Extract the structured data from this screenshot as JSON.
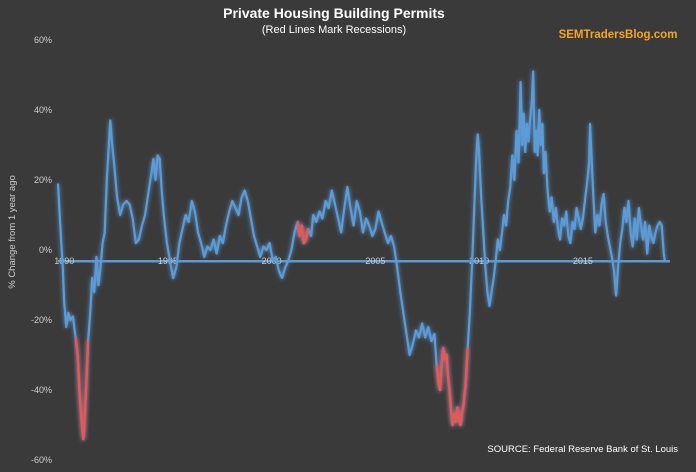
{
  "chart_data": {
    "type": "line",
    "title": "Private Housing Building Permits",
    "subtitle": "(Red Lines Mark Recessions)",
    "watermark": "SEMTradersBlog.com",
    "source": "SOURCE:  Federal Reserve Bank of St. Louis",
    "ylabel": "% Change from 1 year ago",
    "xlabel": "",
    "x_ticks": [
      "1990",
      "1995",
      "2000",
      "2005",
      "2010",
      "2015"
    ],
    "y_ticks": [
      "60%",
      "40%",
      "20%",
      "0%",
      "-20%",
      "-40%",
      "-60%"
    ],
    "xlim": [
      1989.7,
      2019.2
    ],
    "ylim": [
      -60,
      60
    ],
    "grid": false,
    "colors": {
      "series": "#5b9bd5",
      "recession": "#e05a5a",
      "background": "#3a3a3a",
      "zero_line": "#5b9bd5",
      "watermark": "#f5a623"
    },
    "series": [
      {
        "values": [
          [
            1989.7,
            19
          ],
          [
            1989.78,
            10
          ],
          [
            1989.85,
            3
          ],
          [
            1989.93,
            -5
          ],
          [
            1990.0,
            -15
          ],
          [
            1990.1,
            -22
          ],
          [
            1990.2,
            -18
          ],
          [
            1990.3,
            -20
          ],
          [
            1990.42,
            -19
          ],
          [
            1990.55,
            -25
          ],
          [
            1990.65,
            -30
          ],
          [
            1990.75,
            -42
          ],
          [
            1990.83,
            -48
          ],
          [
            1990.92,
            -54
          ],
          [
            1990.97,
            -50
          ],
          [
            1991.05,
            -40
          ],
          [
            1991.15,
            -26
          ],
          [
            1991.25,
            -18
          ],
          [
            1991.35,
            -8
          ],
          [
            1991.45,
            -12
          ],
          [
            1991.55,
            -2
          ],
          [
            1991.65,
            -10
          ],
          [
            1991.75,
            -5
          ],
          [
            1991.85,
            2
          ],
          [
            1991.95,
            5
          ],
          [
            1992.05,
            20
          ],
          [
            1992.15,
            30
          ],
          [
            1992.22,
            37
          ],
          [
            1992.3,
            31
          ],
          [
            1992.4,
            25
          ],
          [
            1992.55,
            15
          ],
          [
            1992.7,
            10
          ],
          [
            1992.85,
            13
          ],
          [
            1993.0,
            14
          ],
          [
            1993.15,
            13
          ],
          [
            1993.3,
            9
          ],
          [
            1993.45,
            2
          ],
          [
            1993.6,
            3
          ],
          [
            1993.75,
            7
          ],
          [
            1993.9,
            10
          ],
          [
            1994.05,
            16
          ],
          [
            1994.2,
            22
          ],
          [
            1994.3,
            26
          ],
          [
            1994.4,
            20
          ],
          [
            1994.5,
            27
          ],
          [
            1994.6,
            26
          ],
          [
            1994.7,
            17
          ],
          [
            1994.8,
            10
          ],
          [
            1994.95,
            2
          ],
          [
            1995.1,
            -3
          ],
          [
            1995.25,
            -8
          ],
          [
            1995.4,
            -5
          ],
          [
            1995.55,
            2
          ],
          [
            1995.7,
            6
          ],
          [
            1995.85,
            10
          ],
          [
            1996.0,
            8
          ],
          [
            1996.15,
            14
          ],
          [
            1996.3,
            11
          ],
          [
            1996.45,
            5
          ],
          [
            1996.6,
            2
          ],
          [
            1996.75,
            -2
          ],
          [
            1996.9,
            1
          ],
          [
            1997.05,
            0
          ],
          [
            1997.2,
            3
          ],
          [
            1997.35,
            -1
          ],
          [
            1997.5,
            4
          ],
          [
            1997.65,
            2
          ],
          [
            1997.8,
            7
          ],
          [
            1997.95,
            11
          ],
          [
            1998.1,
            14
          ],
          [
            1998.25,
            12
          ],
          [
            1998.4,
            10
          ],
          [
            1998.55,
            15
          ],
          [
            1998.7,
            17
          ],
          [
            1998.85,
            14
          ],
          [
            1999.0,
            9
          ],
          [
            1999.15,
            4
          ],
          [
            1999.3,
            1
          ],
          [
            1999.45,
            -2
          ],
          [
            1999.6,
            1
          ],
          [
            1999.75,
            0
          ],
          [
            1999.9,
            2
          ],
          [
            2000.05,
            -3
          ],
          [
            2000.2,
            -2
          ],
          [
            2000.35,
            -6
          ],
          [
            2000.5,
            -8
          ],
          [
            2000.65,
            -5
          ],
          [
            2000.8,
            -3
          ],
          [
            2000.95,
            0
          ],
          [
            2001.1,
            5
          ],
          [
            2001.25,
            8
          ],
          [
            2001.35,
            4
          ],
          [
            2001.45,
            7
          ],
          [
            2001.55,
            2
          ],
          [
            2001.65,
            3
          ],
          [
            2001.75,
            6
          ],
          [
            2001.9,
            4
          ],
          [
            2002.0,
            10
          ],
          [
            2002.15,
            8
          ],
          [
            2002.3,
            11
          ],
          [
            2002.45,
            9
          ],
          [
            2002.6,
            14
          ],
          [
            2002.75,
            12
          ],
          [
            2002.9,
            17
          ],
          [
            2003.05,
            13
          ],
          [
            2003.2,
            9
          ],
          [
            2003.35,
            5
          ],
          [
            2003.5,
            12
          ],
          [
            2003.65,
            18
          ],
          [
            2003.8,
            12
          ],
          [
            2003.95,
            7
          ],
          [
            2004.1,
            14
          ],
          [
            2004.25,
            11
          ],
          [
            2004.4,
            5
          ],
          [
            2004.55,
            9
          ],
          [
            2004.7,
            7
          ],
          [
            2004.85,
            4
          ],
          [
            2005.0,
            6
          ],
          [
            2005.15,
            11
          ],
          [
            2005.3,
            8
          ],
          [
            2005.45,
            5
          ],
          [
            2005.6,
            2
          ],
          [
            2005.75,
            4
          ],
          [
            2005.9,
            1
          ],
          [
            2006.05,
            -5
          ],
          [
            2006.2,
            -12
          ],
          [
            2006.35,
            -18
          ],
          [
            2006.5,
            -24
          ],
          [
            2006.65,
            -30
          ],
          [
            2006.8,
            -27
          ],
          [
            2006.95,
            -23
          ],
          [
            2007.1,
            -25
          ],
          [
            2007.25,
            -21
          ],
          [
            2007.4,
            -25
          ],
          [
            2007.55,
            -22
          ],
          [
            2007.7,
            -26
          ],
          [
            2007.85,
            -24
          ],
          [
            2007.95,
            -33
          ],
          [
            2008.05,
            -38
          ],
          [
            2008.12,
            -40
          ],
          [
            2008.2,
            -32
          ],
          [
            2008.27,
            -28
          ],
          [
            2008.35,
            -31
          ],
          [
            2008.42,
            -30
          ],
          [
            2008.5,
            -36
          ],
          [
            2008.57,
            -40
          ],
          [
            2008.65,
            -46
          ],
          [
            2008.72,
            -50
          ],
          [
            2008.8,
            -47
          ],
          [
            2008.87,
            -49
          ],
          [
            2008.95,
            -45
          ],
          [
            2009.03,
            -48
          ],
          [
            2009.1,
            -50
          ],
          [
            2009.17,
            -47
          ],
          [
            2009.25,
            -44
          ],
          [
            2009.35,
            -38
          ],
          [
            2009.45,
            -28
          ],
          [
            2009.55,
            -18
          ],
          [
            2009.65,
            -5
          ],
          [
            2009.75,
            10
          ],
          [
            2009.85,
            25
          ],
          [
            2009.93,
            33
          ],
          [
            2010.0,
            28
          ],
          [
            2010.1,
            15
          ],
          [
            2010.2,
            5
          ],
          [
            2010.3,
            -5
          ],
          [
            2010.4,
            -12
          ],
          [
            2010.5,
            -16
          ],
          [
            2010.6,
            -12
          ],
          [
            2010.7,
            -8
          ],
          [
            2010.8,
            -3
          ],
          [
            2010.9,
            3
          ],
          [
            2011.0,
            0
          ],
          [
            2011.1,
            5
          ],
          [
            2011.2,
            10
          ],
          [
            2011.3,
            7
          ],
          [
            2011.4,
            14
          ],
          [
            2011.5,
            18
          ],
          [
            2011.6,
            27
          ],
          [
            2011.7,
            20
          ],
          [
            2011.8,
            34
          ],
          [
            2011.9,
            25
          ],
          [
            2012.0,
            48
          ],
          [
            2012.08,
            30
          ],
          [
            2012.15,
            39
          ],
          [
            2012.22,
            28
          ],
          [
            2012.3,
            36
          ],
          [
            2012.38,
            31
          ],
          [
            2012.45,
            37
          ],
          [
            2012.55,
            43
          ],
          [
            2012.6,
            51
          ],
          [
            2012.68,
            28
          ],
          [
            2012.75,
            34
          ],
          [
            2012.82,
            27
          ],
          [
            2012.9,
            40
          ],
          [
            2012.97,
            30
          ],
          [
            2013.05,
            36
          ],
          [
            2013.12,
            22
          ],
          [
            2013.2,
            28
          ],
          [
            2013.3,
            17
          ],
          [
            2013.4,
            11
          ],
          [
            2013.5,
            15
          ],
          [
            2013.6,
            8
          ],
          [
            2013.7,
            12
          ],
          [
            2013.8,
            6
          ],
          [
            2013.9,
            3
          ],
          [
            2014.0,
            9
          ],
          [
            2014.1,
            7
          ],
          [
            2014.2,
            11
          ],
          [
            2014.3,
            4
          ],
          [
            2014.4,
            2
          ],
          [
            2014.5,
            8
          ],
          [
            2014.6,
            6
          ],
          [
            2014.7,
            12
          ],
          [
            2014.8,
            9
          ],
          [
            2014.9,
            6
          ],
          [
            2015.0,
            9
          ],
          [
            2015.1,
            14
          ],
          [
            2015.2,
            19
          ],
          [
            2015.3,
            25
          ],
          [
            2015.35,
            36
          ],
          [
            2015.42,
            26
          ],
          [
            2015.5,
            16
          ],
          [
            2015.6,
            5
          ],
          [
            2015.7,
            10
          ],
          [
            2015.8,
            7
          ],
          [
            2015.9,
            13
          ],
          [
            2016.0,
            16
          ],
          [
            2016.1,
            8
          ],
          [
            2016.2,
            4
          ],
          [
            2016.3,
            1
          ],
          [
            2016.4,
            -2
          ],
          [
            2016.5,
            -6
          ],
          [
            2016.6,
            -13
          ],
          [
            2016.7,
            -5
          ],
          [
            2016.8,
            2
          ],
          [
            2016.9,
            6
          ],
          [
            2017.0,
            12
          ],
          [
            2017.1,
            8
          ],
          [
            2017.2,
            14
          ],
          [
            2017.3,
            5
          ],
          [
            2017.4,
            1
          ],
          [
            2017.5,
            9
          ],
          [
            2017.6,
            3
          ],
          [
            2017.7,
            12
          ],
          [
            2017.8,
            7
          ],
          [
            2017.9,
            3
          ],
          [
            2018.0,
            8
          ],
          [
            2018.1,
            -1
          ],
          [
            2018.2,
            7
          ],
          [
            2018.3,
            4
          ],
          [
            2018.4,
            2
          ],
          [
            2018.5,
            5
          ],
          [
            2018.6,
            7
          ],
          [
            2018.7,
            8
          ],
          [
            2018.8,
            7
          ],
          [
            2018.9,
            -1
          ],
          [
            2018.95,
            -3
          ]
        ]
      }
    ],
    "recessions": [
      [
        1990.55,
        1991.2
      ],
      [
        2001.2,
        2001.85
      ],
      [
        2007.95,
        2009.45
      ]
    ]
  }
}
